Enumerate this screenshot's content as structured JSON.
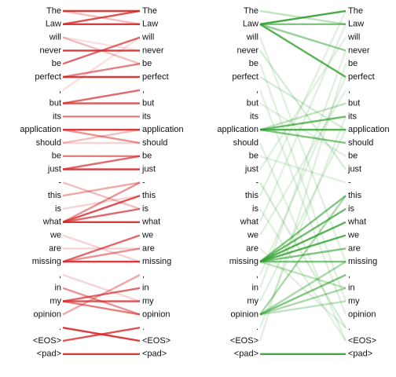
{
  "tokens": [
    "The",
    "Law",
    "will",
    "never",
    "be",
    "perfect",
    ",",
    "but",
    "its",
    "application",
    "should",
    "be",
    "just",
    "-",
    "this",
    "is",
    "what",
    "we",
    "are",
    "missing",
    ",",
    "in",
    "my",
    "opinion",
    ".",
    "<EOS>",
    "<pad>"
  ],
  "panels": [
    {
      "color": "#d62728",
      "edges": [
        [
          0,
          0,
          0.9
        ],
        [
          1,
          0,
          0.8
        ],
        [
          0,
          1,
          0.3
        ],
        [
          1,
          1,
          0.9
        ],
        [
          4,
          2,
          0.7
        ],
        [
          3,
          3,
          0.9
        ],
        [
          2,
          4,
          0.3
        ],
        [
          5,
          4,
          0.6
        ],
        [
          5,
          5,
          0.9
        ],
        [
          7,
          6,
          0.7
        ],
        [
          7,
          7,
          0.8
        ],
        [
          8,
          8,
          0.6
        ],
        [
          9,
          9,
          0.9
        ],
        [
          9,
          10,
          0.5
        ],
        [
          10,
          9,
          0.3
        ],
        [
          11,
          11,
          0.6
        ],
        [
          12,
          11,
          0.7
        ],
        [
          12,
          12,
          0.9
        ],
        [
          14,
          13,
          0.4
        ],
        [
          16,
          14,
          0.8
        ],
        [
          16,
          15,
          0.7
        ],
        [
          16,
          16,
          0.9
        ],
        [
          16,
          13,
          0.5
        ],
        [
          13,
          15,
          0.3
        ],
        [
          19,
          17,
          0.7
        ],
        [
          19,
          18,
          0.5
        ],
        [
          19,
          19,
          0.9
        ],
        [
          17,
          19,
          0.2
        ],
        [
          22,
          21,
          0.7
        ],
        [
          22,
          22,
          0.8
        ],
        [
          22,
          23,
          0.6
        ],
        [
          21,
          23,
          0.5
        ],
        [
          23,
          20,
          0.4
        ],
        [
          20,
          22,
          0.2
        ],
        [
          24,
          25,
          0.9
        ],
        [
          25,
          24,
          0.8
        ],
        [
          26,
          26,
          0.9
        ],
        [
          2,
          3,
          0.15
        ],
        [
          6,
          2,
          0.15
        ],
        [
          10,
          10,
          0.2
        ],
        [
          15,
          14,
          0.2
        ],
        [
          18,
          18,
          0.2
        ]
      ]
    },
    {
      "color": "#2ca02c",
      "edges": [
        [
          1,
          0,
          0.9
        ],
        [
          1,
          1,
          0.6
        ],
        [
          1,
          3,
          0.5
        ],
        [
          1,
          5,
          0.8
        ],
        [
          0,
          1,
          0.3
        ],
        [
          9,
          8,
          0.7
        ],
        [
          9,
          9,
          0.8
        ],
        [
          9,
          10,
          0.6
        ],
        [
          9,
          7,
          0.3
        ],
        [
          19,
          15,
          0.7
        ],
        [
          19,
          16,
          0.8
        ],
        [
          19,
          17,
          0.8
        ],
        [
          19,
          18,
          0.6
        ],
        [
          19,
          14,
          0.6
        ],
        [
          19,
          19,
          0.6
        ],
        [
          19,
          21,
          0.3
        ],
        [
          23,
          20,
          0.6
        ],
        [
          23,
          14,
          0.4
        ],
        [
          23,
          19,
          0.4
        ],
        [
          23,
          21,
          0.4
        ],
        [
          23,
          22,
          0.3
        ],
        [
          26,
          26,
          0.9
        ],
        [
          5,
          9,
          0.2
        ],
        [
          3,
          12,
          0.2
        ],
        [
          12,
          2,
          0.15
        ],
        [
          16,
          1,
          0.15
        ],
        [
          2,
          19,
          0.15
        ],
        [
          6,
          23,
          0.15
        ],
        [
          24,
          8,
          0.15
        ],
        [
          25,
          4,
          0.15
        ],
        [
          13,
          24,
          0.2
        ],
        [
          10,
          25,
          0.15
        ],
        [
          7,
          11,
          0.15
        ],
        [
          17,
          6,
          0.15
        ],
        [
          21,
          3,
          0.15
        ],
        [
          14,
          0,
          0.15
        ],
        [
          22,
          9,
          0.15
        ],
        [
          4,
          22,
          0.15
        ],
        [
          11,
          13,
          0.15
        ],
        [
          20,
          5,
          0.15
        ],
        [
          18,
          24,
          0.15
        ],
        [
          15,
          25,
          0.15
        ]
      ]
    }
  ]
}
